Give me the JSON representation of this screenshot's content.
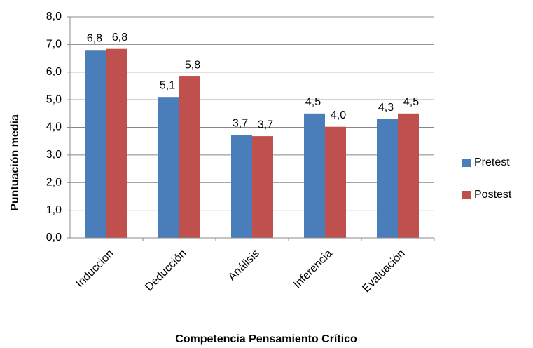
{
  "chart_data": {
    "type": "bar",
    "x_label": "Competencia Pensamiento Crítico",
    "y_label": "Puntuación media",
    "categories": [
      "Induccion",
      "Deducción",
      "Análisis",
      "Inferencia",
      "Evaluación"
    ],
    "series": [
      {
        "name": "Pretest",
        "color": "#4a7ebb",
        "values": [
          6.8,
          5.1,
          3.72,
          4.5,
          4.3
        ],
        "value_labels": [
          "6,8",
          "5,1",
          "3,7",
          "4,5",
          "4,3"
        ]
      },
      {
        "name": "Postest",
        "color": "#c0504d",
        "values": [
          6.84,
          5.84,
          3.68,
          4.02,
          4.5
        ],
        "value_labels": [
          "6,8",
          "5,8",
          "3,7",
          "4,0",
          "4,5"
        ]
      }
    ],
    "ylim": [
      0,
      8
    ],
    "yticks": [
      {
        "value": 0,
        "label": "0,0"
      },
      {
        "value": 1,
        "label": "1,0"
      },
      {
        "value": 2,
        "label": "2,0"
      },
      {
        "value": 3,
        "label": "3,0"
      },
      {
        "value": 4,
        "label": "4,0"
      },
      {
        "value": 5,
        "label": "5,0"
      },
      {
        "value": 6,
        "label": "6,0"
      },
      {
        "value": 7,
        "label": "7,0"
      },
      {
        "value": 8,
        "label": "8,0"
      }
    ],
    "grid": true,
    "legend": "right"
  }
}
